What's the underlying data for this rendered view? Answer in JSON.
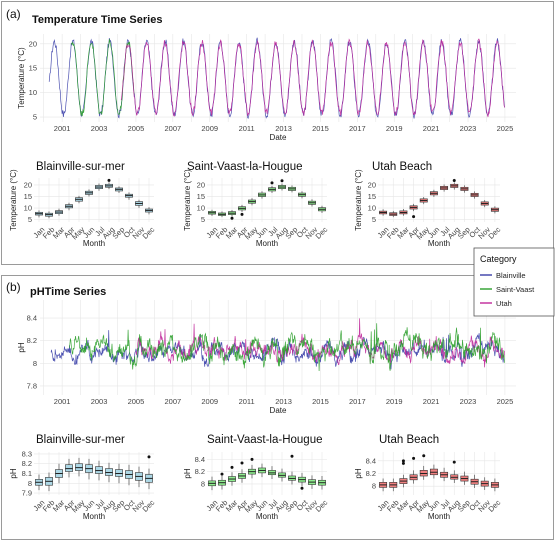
{
  "figure": {
    "panel_a_tag": "(a)",
    "panel_b_tag": "(b)"
  },
  "colors": {
    "Blainville": "#3a3fa8",
    "Saint-Vaast": "#2ca02c",
    "Utah": "#c0289a",
    "box_blainville": "#add8e6",
    "box_saintvaast": "#90ee90",
    "box_utah": "#f08080"
  },
  "legend": {
    "title": "Category",
    "items": [
      "Blainville",
      "Saint-Vaast",
      "Utah"
    ]
  },
  "chart_data": [
    {
      "id": "temp_ts",
      "type": "line",
      "title": "Temperature Time Series",
      "xlabel": "Date",
      "ylabel": "Temperature (°C)",
      "xlim": [
        1999.8,
        2025.6
      ],
      "ylim": [
        4,
        22
      ],
      "xticks": [
        2001,
        2003,
        2005,
        2007,
        2009,
        2011,
        2013,
        2015,
        2017,
        2019,
        2021,
        2023,
        2025
      ],
      "yticks": [
        5,
        10,
        15,
        20
      ],
      "grid": true,
      "series": [
        {
          "name": "Blainville",
          "start": 2000.3,
          "end": 2025.0,
          "mean": 13.0,
          "amp": 7.5
        },
        {
          "name": "Saint-Vaast",
          "start": 2001.5,
          "end": 2004.9,
          "mean": 13.0,
          "amp": 7.4
        },
        {
          "name": "Utah",
          "start": 2004.2,
          "end": 2025.0,
          "mean": 13.0,
          "amp": 7.2
        }
      ]
    },
    {
      "id": "temp_blainville",
      "type": "box",
      "title": "Blainville-sur-mer",
      "xlabel": "Month",
      "ylabel": "Temperature (°C)",
      "categories": [
        "Jan",
        "Feb",
        "Mar",
        "Apr",
        "May",
        "Jun",
        "Jul",
        "Aug",
        "Sep",
        "Oct",
        "Nov",
        "Dec"
      ],
      "ylim": [
        4,
        23
      ],
      "yticks": [
        5,
        10,
        15,
        20
      ],
      "median": [
        7.6,
        7.2,
        8.3,
        10.8,
        13.8,
        16.6,
        19.1,
        19.6,
        18.1,
        15.4,
        12.0,
        9.0
      ],
      "q1": [
        7.0,
        6.5,
        7.6,
        10.1,
        13.0,
        15.9,
        18.4,
        19.0,
        17.4,
        14.7,
        11.2,
        8.3
      ],
      "q3": [
        8.2,
        7.8,
        8.9,
        11.5,
        14.5,
        17.3,
        19.8,
        20.3,
        18.7,
        16.0,
        12.8,
        9.6
      ],
      "low": [
        6.0,
        5.6,
        6.7,
        9.1,
        12.1,
        15.0,
        17.5,
        18.2,
        16.5,
        13.6,
        10.1,
        7.3
      ],
      "high": [
        9.0,
        8.6,
        9.8,
        12.3,
        15.3,
        18.1,
        20.6,
        21.1,
        19.4,
        16.8,
        13.6,
        10.4
      ],
      "outliers": [
        [],
        [],
        [],
        [],
        [],
        [],
        [],
        [
          22.0
        ],
        [],
        [],
        [],
        []
      ],
      "color": "#add8e6"
    },
    {
      "id": "temp_saintvaast",
      "type": "box",
      "title": "Saint-Vaast-la-Hougue",
      "xlabel": "Month",
      "ylabel": "Temperature (°C)",
      "categories": [
        "Jan",
        "Feb",
        "Mar",
        "Apr",
        "May",
        "Jun",
        "Jul",
        "Aug",
        "Sep",
        "Oct",
        "Nov",
        "Dec"
      ],
      "ylim": [
        4,
        23
      ],
      "yticks": [
        5,
        10,
        15,
        20
      ],
      "median": [
        8.0,
        7.3,
        7.8,
        9.9,
        12.8,
        15.7,
        18.1,
        19.1,
        18.3,
        15.8,
        12.3,
        9.5
      ],
      "q1": [
        7.4,
        6.8,
        7.2,
        9.2,
        12.1,
        15.0,
        17.4,
        18.4,
        17.6,
        15.1,
        11.6,
        8.8
      ],
      "q3": [
        8.6,
        7.9,
        8.5,
        10.6,
        13.5,
        16.5,
        18.8,
        19.8,
        19.0,
        16.5,
        13.0,
        10.2
      ],
      "low": [
        6.6,
        6.1,
        6.4,
        8.3,
        11.2,
        14.1,
        16.5,
        17.6,
        16.8,
        14.2,
        10.7,
        7.9
      ],
      "high": [
        9.3,
        8.6,
        9.2,
        11.4,
        14.3,
        17.3,
        19.6,
        20.6,
        19.8,
        17.3,
        13.8,
        11.0
      ],
      "outliers": [
        [],
        [],
        [
          5.6
        ],
        [
          7.3
        ],
        [],
        [],
        [
          20.9
        ],
        [
          21.8
        ],
        [],
        [],
        [],
        []
      ],
      "color": "#90ee90"
    },
    {
      "id": "temp_utah",
      "type": "box",
      "title": "Utah Beach",
      "xlabel": "Month",
      "ylabel": "Temperature (°C)",
      "categories": [
        "Jan",
        "Feb",
        "Mar",
        "Apr",
        "May",
        "Jun",
        "Jul",
        "Aug",
        "Sep",
        "Oct",
        "Nov",
        "Dec"
      ],
      "ylim": [
        4,
        23
      ],
      "yticks": [
        5,
        10,
        15,
        20
      ],
      "median": [
        8.1,
        7.4,
        8.1,
        10.3,
        13.3,
        16.4,
        18.7,
        19.6,
        18.3,
        15.7,
        12.0,
        9.3
      ],
      "q1": [
        7.5,
        6.8,
        7.5,
        9.6,
        12.6,
        15.7,
        18.0,
        18.9,
        17.6,
        15.0,
        11.3,
        8.6
      ],
      "q3": [
        8.7,
        8.0,
        8.8,
        11.0,
        14.0,
        17.1,
        19.4,
        20.3,
        19.0,
        16.4,
        12.7,
        10.0
      ],
      "low": [
        6.7,
        6.1,
        6.7,
        8.7,
        11.7,
        14.8,
        17.1,
        18.0,
        16.7,
        14.1,
        10.4,
        7.7
      ],
      "high": [
        9.5,
        8.8,
        9.6,
        11.8,
        14.8,
        17.9,
        20.2,
        21.1,
        19.8,
        17.2,
        13.5,
        10.8
      ],
      "outliers": [
        [],
        [],
        [],
        [
          6.3
        ],
        [],
        [],
        [],
        [
          21.9
        ],
        [],
        [],
        [],
        []
      ],
      "color": "#f08080"
    },
    {
      "id": "ph_ts",
      "type": "line",
      "title": "pHTime Series",
      "xlabel": "Date",
      "ylabel": "pH",
      "xlim": [
        1999.8,
        2025.6
      ],
      "ylim": [
        7.72,
        8.56
      ],
      "xticks": [
        2001,
        2003,
        2005,
        2007,
        2009,
        2011,
        2013,
        2015,
        2017,
        2019,
        2021,
        2023,
        2025
      ],
      "yticks": [
        7.8,
        8.0,
        8.2,
        8.4
      ],
      "grid": true,
      "series": [
        {
          "name": "Blainville",
          "start": 2000.4,
          "end": 2025.0,
          "mean": 8.1,
          "noise": 0.09
        },
        {
          "name": "Saint-Vaast",
          "start": 2001.4,
          "end": 2025.0,
          "mean": 8.12,
          "noise": 0.12
        },
        {
          "name": "Utah",
          "start": 2005.0,
          "end": 2025.0,
          "mean": 8.12,
          "noise": 0.1
        }
      ]
    },
    {
      "id": "ph_blainville",
      "type": "box",
      "title": "Blainville-sur-mer",
      "xlabel": "Month",
      "ylabel": "pH",
      "categories": [
        "Jan",
        "Feb",
        "Mar",
        "Apr",
        "May",
        "Jun",
        "Jul",
        "Aug",
        "Sep",
        "Oct",
        "Nov",
        "Dec"
      ],
      "ylim": [
        7.88,
        8.32
      ],
      "yticks": [
        7.9,
        8.0,
        8.1,
        8.2,
        8.3
      ],
      "median": [
        8.01,
        8.02,
        8.1,
        8.15,
        8.16,
        8.15,
        8.13,
        8.11,
        8.1,
        8.09,
        8.07,
        8.05
      ],
      "q1": [
        7.98,
        7.98,
        8.06,
        8.12,
        8.13,
        8.11,
        8.1,
        8.08,
        8.07,
        8.05,
        8.03,
        8.01
      ],
      "q3": [
        8.04,
        8.06,
        8.14,
        8.19,
        8.2,
        8.19,
        8.17,
        8.15,
        8.14,
        8.13,
        8.11,
        8.09
      ],
      "low": [
        7.93,
        7.92,
        8.0,
        8.06,
        8.07,
        8.04,
        8.03,
        8.01,
        8.0,
        7.98,
        7.96,
        7.94
      ],
      "high": [
        8.09,
        8.11,
        8.2,
        8.25,
        8.26,
        8.25,
        8.23,
        8.21,
        8.2,
        8.19,
        8.17,
        8.15
      ],
      "outliers": [
        [],
        [],
        [],
        [],
        [],
        [],
        [],
        [],
        [],
        [],
        [],
        [
          8.27
        ]
      ],
      "color": "#add8e6"
    },
    {
      "id": "ph_saintvaast",
      "type": "box",
      "title": "Saint-Vaast-la-Hougue",
      "xlabel": "Month",
      "ylabel": "pH",
      "categories": [
        "Jan",
        "Feb",
        "Mar",
        "Apr",
        "May",
        "Jun",
        "Jul",
        "Aug",
        "Sep",
        "Oct",
        "Nov",
        "Dec"
      ],
      "ylim": [
        7.82,
        8.52
      ],
      "yticks": [
        8.0,
        8.2,
        8.4
      ],
      "median": [
        8.01,
        8.02,
        8.08,
        8.13,
        8.2,
        8.22,
        8.18,
        8.14,
        8.09,
        8.07,
        8.03,
        8.02
      ],
      "q1": [
        7.97,
        7.98,
        8.04,
        8.09,
        8.16,
        8.18,
        8.15,
        8.11,
        8.06,
        8.03,
        7.99,
        7.98
      ],
      "q3": [
        8.05,
        8.06,
        8.12,
        8.17,
        8.24,
        8.26,
        8.22,
        8.18,
        8.13,
        8.11,
        8.07,
        8.06
      ],
      "low": [
        7.9,
        7.91,
        7.97,
        8.02,
        8.09,
        8.11,
        8.08,
        8.04,
        7.99,
        7.96,
        7.92,
        7.91
      ],
      "high": [
        8.12,
        8.13,
        8.19,
        8.24,
        8.31,
        8.33,
        8.29,
        8.25,
        8.2,
        8.18,
        8.14,
        8.13
      ],
      "outliers": [
        [],
        [
          8.16
        ],
        [
          8.27
        ],
        [
          8.34
        ],
        [
          8.4
        ],
        [],
        [],
        [],
        [
          8.45
        ],
        [
          7.93
        ],
        [],
        []
      ],
      "color": "#90ee90"
    },
    {
      "id": "ph_utah",
      "type": "box",
      "title": "Utah Beach",
      "xlabel": "Month",
      "ylabel": "pH",
      "categories": [
        "Jan",
        "Feb",
        "Mar",
        "Apr",
        "May",
        "Jun",
        "Jul",
        "Aug",
        "Sep",
        "Oct",
        "Nov",
        "Dec"
      ],
      "ylim": [
        7.86,
        8.54
      ],
      "yticks": [
        8.0,
        8.2,
        8.4
      ],
      "median": [
        8.02,
        8.02,
        8.08,
        8.14,
        8.2,
        8.22,
        8.18,
        8.14,
        8.12,
        8.07,
        8.04,
        8.02
      ],
      "q1": [
        7.98,
        7.98,
        8.04,
        8.1,
        8.16,
        8.18,
        8.14,
        8.11,
        8.08,
        8.03,
        8.0,
        7.98
      ],
      "q3": [
        8.06,
        8.06,
        8.12,
        8.18,
        8.25,
        8.27,
        8.22,
        8.18,
        8.16,
        8.11,
        8.08,
        8.06
      ],
      "low": [
        7.92,
        7.92,
        7.98,
        8.04,
        8.1,
        8.12,
        8.08,
        8.05,
        8.02,
        7.97,
        7.94,
        7.92
      ],
      "high": [
        8.12,
        8.12,
        8.18,
        8.25,
        8.32,
        8.34,
        8.29,
        8.25,
        8.23,
        8.18,
        8.14,
        8.12
      ],
      "outliers": [
        [],
        [],
        [
          8.36,
          8.4
        ],
        [
          8.44
        ],
        [
          8.48
        ],
        [],
        [],
        [
          8.38
        ],
        [],
        [],
        [],
        []
      ],
      "color": "#f08080"
    }
  ]
}
